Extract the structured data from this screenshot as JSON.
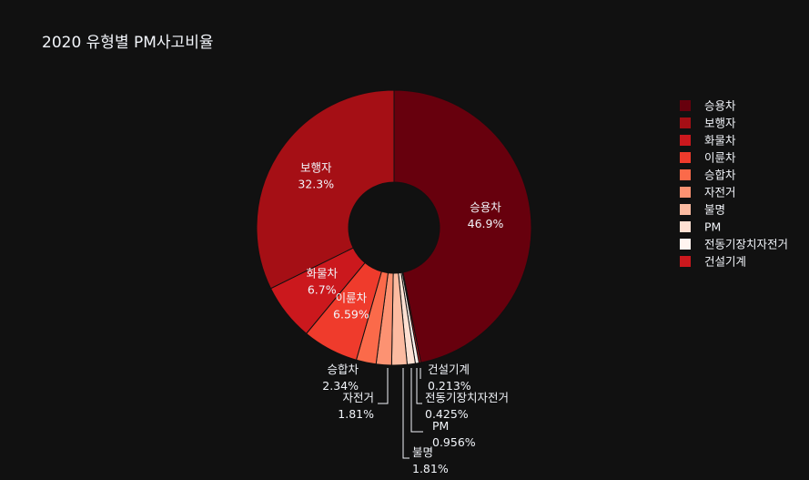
{
  "chart_data": {
    "type": "pie",
    "title": "2020 유형별 PM사고비율",
    "hole": true,
    "legend_position": "right",
    "slices": [
      {
        "label": "승용차",
        "value": 46.9,
        "text": "46.9%",
        "color": "#67000d"
      },
      {
        "label": "건설기계",
        "value": 0.213,
        "text": "0.213%",
        "color": "#cb181d"
      },
      {
        "label": "전동기장치자전거",
        "value": 0.425,
        "text": "0.425%",
        "color": "#fff5f0"
      },
      {
        "label": "PM",
        "value": 0.956,
        "text": "0.956%",
        "color": "#fee0d2"
      },
      {
        "label": "불명",
        "value": 1.81,
        "text": "1.81%",
        "color": "#fcbba1"
      },
      {
        "label": "자전거",
        "value": 1.81,
        "text": "1.81%",
        "color": "#fc9272"
      },
      {
        "label": "승합차",
        "value": 2.34,
        "text": "2.34%",
        "color": "#fb6a4a"
      },
      {
        "label": "이륜차",
        "value": 6.59,
        "text": "6.59%",
        "color": "#ef3b2c"
      },
      {
        "label": "화물차",
        "value": 6.7,
        "text": "6.7%",
        "color": "#cb181d"
      },
      {
        "label": "보행자",
        "value": 32.3,
        "text": "32.3%",
        "color": "#a50f15"
      }
    ],
    "legend": [
      {
        "label": "승용차",
        "color": "#67000d"
      },
      {
        "label": "보행자",
        "color": "#a50f15"
      },
      {
        "label": "화물차",
        "color": "#cb181d"
      },
      {
        "label": "이륜차",
        "color": "#ef3b2c"
      },
      {
        "label": "승합차",
        "color": "#fb6a4a"
      },
      {
        "label": "자전거",
        "color": "#fc9272"
      },
      {
        "label": "불명",
        "color": "#fcbba1"
      },
      {
        "label": "PM",
        "color": "#fee0d2"
      },
      {
        "label": "전동기장치자전거",
        "color": "#fff5f0"
      },
      {
        "label": "건설기계",
        "color": "#cb181d"
      }
    ]
  }
}
